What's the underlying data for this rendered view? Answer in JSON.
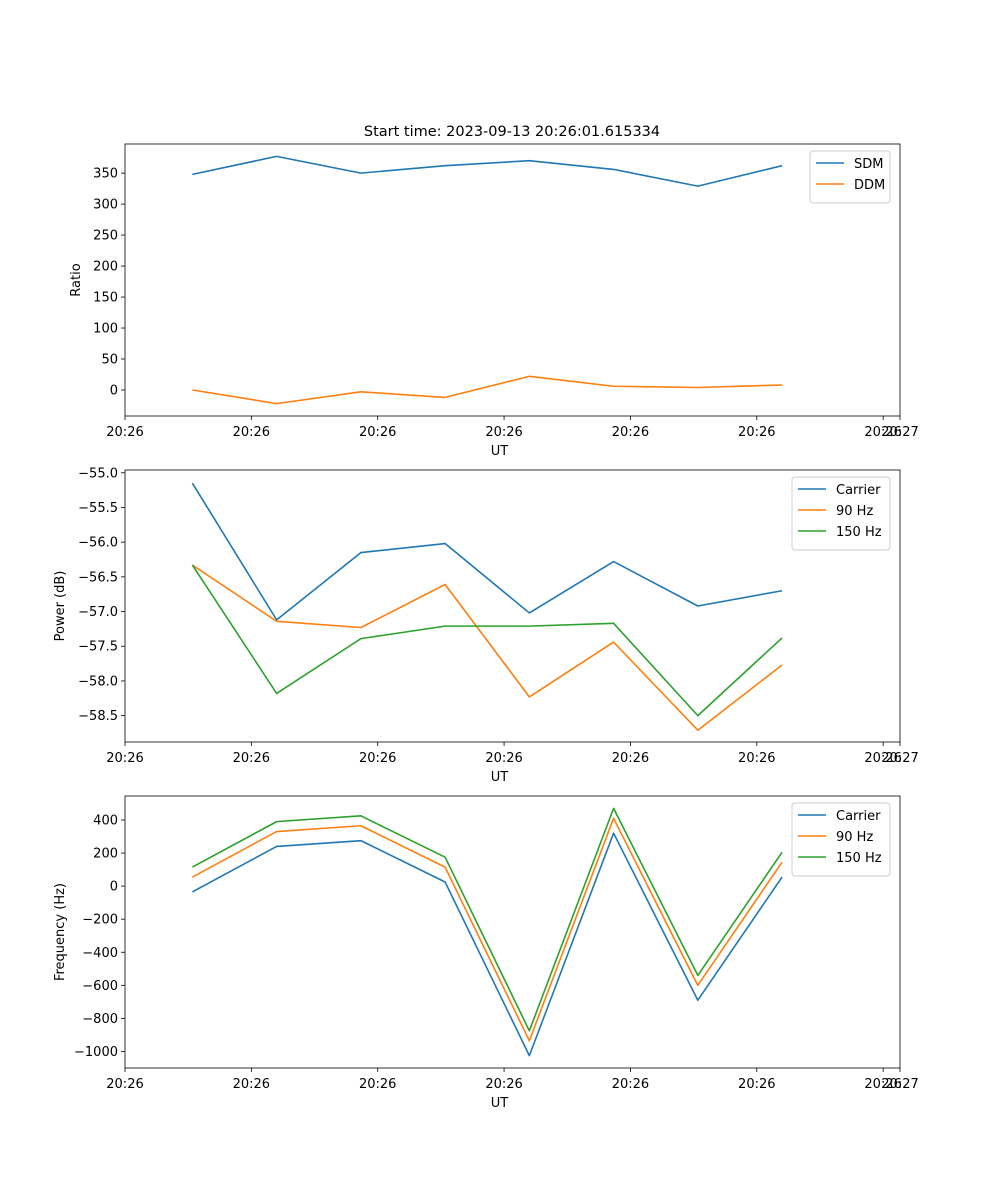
{
  "figure_title": "Start time: 2023-09-13 20:26:01.615334",
  "chart_data": [
    {
      "type": "line",
      "title": "Start time: 2023-09-13 20:26:01.615334",
      "xlabel": "UT",
      "ylabel": "Ratio",
      "x": [
        1,
        2,
        3,
        4,
        5,
        6,
        7,
        8
      ],
      "xlim": [
        0.2,
        9.4
      ],
      "x_ticks": [
        0.2,
        1.7,
        3.2,
        4.7,
        6.2,
        7.7,
        9.2
      ],
      "x_tick_labels": [
        "20:26",
        "20:26",
        "20:26",
        "20:26",
        "20:26",
        "20:26",
        "20:26"
      ],
      "x_end_tick": 9.4,
      "x_end_tick_label": "20:27",
      "ylim": [
        -42,
        397
      ],
      "y_ticks": [
        0,
        50,
        100,
        150,
        200,
        250,
        300,
        350
      ],
      "y_tick_labels": [
        "0",
        "50",
        "100",
        "150",
        "200",
        "250",
        "300",
        "350"
      ],
      "legend": "upper right",
      "series": [
        {
          "name": "SDM",
          "color": "#1f77b4",
          "values": [
            348,
            377,
            350,
            362,
            370,
            356,
            329,
            362
          ]
        },
        {
          "name": "DDM",
          "color": "#ff7f0e",
          "values": [
            0,
            -22,
            -3,
            -12,
            22,
            6,
            4,
            8
          ]
        }
      ]
    },
    {
      "type": "line",
      "title": "",
      "xlabel": "UT",
      "ylabel": "Power (dB)",
      "x": [
        1,
        2,
        3,
        4,
        5,
        6,
        7,
        8
      ],
      "xlim": [
        0.2,
        9.4
      ],
      "x_ticks": [
        0.2,
        1.7,
        3.2,
        4.7,
        6.2,
        7.7,
        9.2
      ],
      "x_tick_labels": [
        "20:26",
        "20:26",
        "20:26",
        "20:26",
        "20:26",
        "20:26",
        "20:26"
      ],
      "x_end_tick": 9.4,
      "x_end_tick_label": "20:27",
      "ylim": [
        -58.88,
        -54.96
      ],
      "y_ticks": [
        -55.0,
        -55.5,
        -56.0,
        -56.5,
        -57.0,
        -57.5,
        -58.0,
        -58.5
      ],
      "y_tick_labels": [
        "−55.0",
        "−55.5",
        "−56.0",
        "−56.5",
        "−57.0",
        "−57.5",
        "−58.0",
        "−58.5"
      ],
      "legend": "upper right",
      "series": [
        {
          "name": "Carrier",
          "color": "#1f77b4",
          "values": [
            -55.15,
            -57.12,
            -56.15,
            -56.02,
            -57.02,
            -56.28,
            -56.92,
            -56.7
          ]
        },
        {
          "name": "90 Hz",
          "color": "#ff7f0e",
          "values": [
            -56.33,
            -57.14,
            -57.23,
            -56.61,
            -58.23,
            -57.44,
            -58.71,
            -57.77
          ]
        },
        {
          "name": "150 Hz",
          "color": "#2ca02c",
          "values": [
            -56.33,
            -58.18,
            -57.39,
            -57.21,
            -57.21,
            -57.17,
            -58.5,
            -57.38
          ]
        }
      ]
    },
    {
      "type": "line",
      "title": "",
      "xlabel": "UT",
      "ylabel": "Frequency (Hz)",
      "x": [
        1,
        2,
        3,
        4,
        5,
        6,
        7,
        8
      ],
      "xlim": [
        0.2,
        9.4
      ],
      "x_ticks": [
        0.2,
        1.7,
        3.2,
        4.7,
        6.2,
        7.7,
        9.2
      ],
      "x_tick_labels": [
        "20:26",
        "20:26",
        "20:26",
        "20:26",
        "20:26",
        "20:26",
        "20:26"
      ],
      "x_end_tick": 9.4,
      "x_end_tick_label": "20:27",
      "ylim": [
        -1100,
        545
      ],
      "y_ticks": [
        400,
        200,
        0,
        -200,
        -400,
        -600,
        -800,
        -1000
      ],
      "y_tick_labels": [
        "400",
        "200",
        "0",
        "−200",
        "−400",
        "−600",
        "−800",
        "−1000"
      ],
      "legend": "upper right",
      "series": [
        {
          "name": "Carrier",
          "color": "#1f77b4",
          "values": [
            -35,
            240,
            275,
            25,
            -1025,
            320,
            -690,
            55
          ]
        },
        {
          "name": "90 Hz",
          "color": "#ff7f0e",
          "values": [
            55,
            330,
            365,
            115,
            -935,
            410,
            -600,
            145
          ]
        },
        {
          "name": "150 Hz",
          "color": "#2ca02c",
          "values": [
            115,
            390,
            425,
            175,
            -875,
            470,
            -540,
            205
          ]
        }
      ]
    }
  ]
}
